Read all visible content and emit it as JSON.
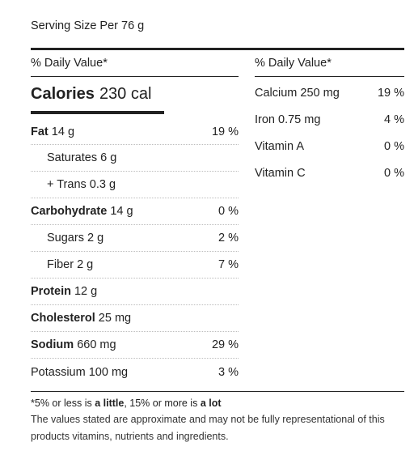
{
  "serving_size": "Serving Size Per 76 g",
  "daily_value_header": "% Daily Value*",
  "calories": {
    "label": "Calories",
    "value": "230 cal"
  },
  "left_nutrients": [
    {
      "name": "Fat",
      "amount": "14 g",
      "pct": "19 %",
      "bold": true,
      "indent": false
    },
    {
      "name": "Saturates",
      "amount": "6 g",
      "pct": "",
      "bold": false,
      "indent": true
    },
    {
      "name": "+ Trans",
      "amount": "0.3 g",
      "pct": "",
      "bold": false,
      "indent": true
    },
    {
      "name": "Carbohydrate",
      "amount": "14 g",
      "pct": "0 %",
      "bold": true,
      "indent": false
    },
    {
      "name": "Sugars",
      "amount": "2 g",
      "pct": "2 %",
      "bold": false,
      "indent": true
    },
    {
      "name": "Fiber",
      "amount": "2 g",
      "pct": "7 %",
      "bold": false,
      "indent": true
    },
    {
      "name": "Protein",
      "amount": "12 g",
      "pct": "",
      "bold": true,
      "indent": false
    },
    {
      "name": "Cholesterol",
      "amount": "25 mg",
      "pct": "",
      "bold": true,
      "indent": false
    },
    {
      "name": "Sodium",
      "amount": "660 mg",
      "pct": "29 %",
      "bold": true,
      "indent": false
    },
    {
      "name": "Potassium",
      "amount": "100 mg",
      "pct": "3 %",
      "bold": false,
      "indent": false
    }
  ],
  "right_nutrients": [
    {
      "name": "Calcium 250 mg",
      "pct": "19 %"
    },
    {
      "name": "Iron 0.75 mg",
      "pct": "4 %"
    },
    {
      "name": "Vitamin A",
      "pct": "0 %"
    },
    {
      "name": "Vitamin C",
      "pct": "0 %"
    }
  ],
  "footnote": {
    "prefix": "*5% or less is ",
    "little": "a little",
    "middle": ", 15% or more is ",
    "lot": "a lot"
  },
  "disclaimer": "The values stated are approximate and may not be fully representational of this products vitamins, nutrients and ingredients."
}
